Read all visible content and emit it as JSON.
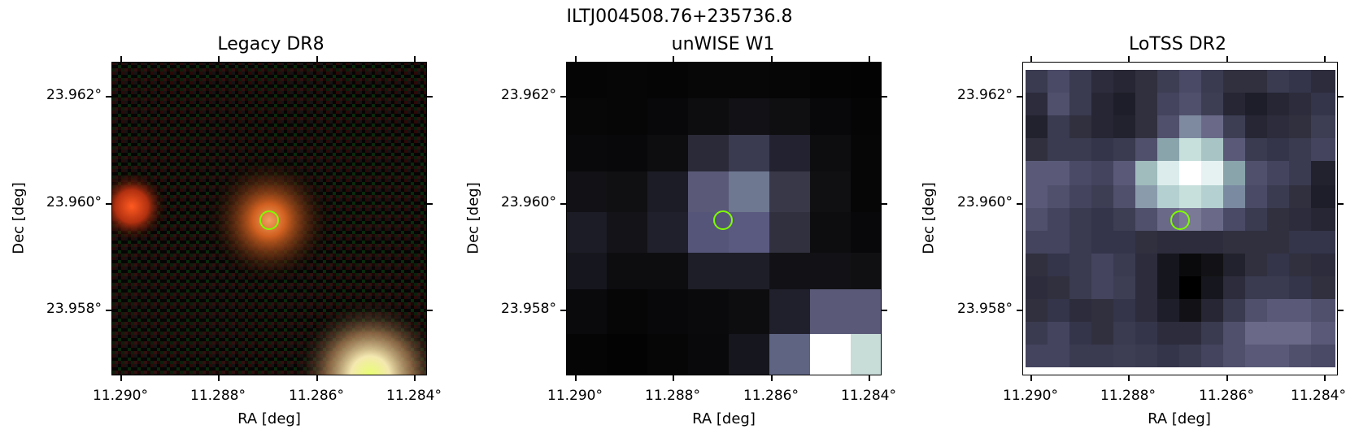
{
  "figure": {
    "title": "ILTJ004508.76+235736.8"
  },
  "panels": [
    {
      "title": "Legacy DR8",
      "xlabel": "RA [deg]",
      "ylabel": "Dec [deg]",
      "x_ticks": [
        "11.290°",
        "11.288°",
        "11.286°",
        "11.284°"
      ],
      "y_ticks": [
        "23.962°",
        "23.960°",
        "23.958°"
      ],
      "marker_color": "#7fff00"
    },
    {
      "title": "unWISE W1",
      "xlabel": "RA [deg]",
      "ylabel": "Dec [deg]",
      "x_ticks": [
        "11.290°",
        "11.288°",
        "11.286°",
        "11.284°"
      ],
      "y_ticks": [
        "23.962°",
        "23.960°",
        "23.958°"
      ],
      "marker_color": "#7fff00"
    },
    {
      "title": "LoTSS DR2",
      "xlabel": "RA [deg]",
      "ylabel": "Dec [deg]",
      "x_ticks": [
        "11.290°",
        "11.288°",
        "11.286°",
        "11.284°"
      ],
      "y_ticks": [
        "23.962°",
        "23.960°",
        "23.958°"
      ],
      "marker_color": "#7fff00"
    }
  ]
}
